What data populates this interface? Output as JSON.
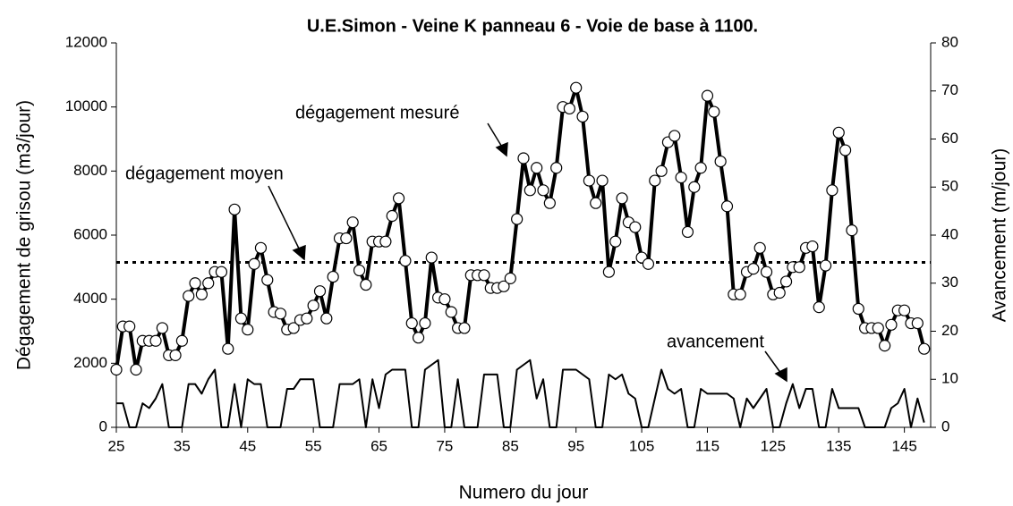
{
  "chart_data": {
    "type": "line",
    "title": "U.E.Simon - Veine K panneau 6 - Voie de base à 1100.",
    "x_label": "Numero du jour",
    "y_label": "Dégagement de grisou (m3/jour)",
    "y2_label": "Avancement (m/jour)",
    "annotations": [
      "dégagement mesuré",
      "dégagement moyen",
      "avancement"
    ],
    "x": [
      25,
      26,
      27,
      28,
      29,
      30,
      31,
      32,
      33,
      34,
      35,
      36,
      37,
      38,
      39,
      40,
      41,
      42,
      43,
      44,
      45,
      46,
      47,
      48,
      49,
      50,
      51,
      52,
      53,
      54,
      55,
      56,
      57,
      58,
      59,
      60,
      61,
      62,
      63,
      64,
      65,
      66,
      67,
      68,
      69,
      70,
      71,
      72,
      73,
      74,
      75,
      76,
      77,
      78,
      79,
      80,
      81,
      82,
      83,
      84,
      85,
      86,
      87,
      88,
      89,
      90,
      91,
      92,
      93,
      94,
      95,
      96,
      97,
      98,
      99,
      100,
      101,
      102,
      103,
      104,
      105,
      106,
      107,
      108,
      109,
      110,
      111,
      112,
      113,
      114,
      115,
      116,
      117,
      118,
      119,
      120,
      121,
      122,
      123,
      124,
      125,
      126,
      127,
      128,
      129,
      130,
      131,
      132,
      133,
      134,
      135,
      136,
      137,
      138,
      139,
      140,
      141,
      142,
      143,
      144,
      145,
      146,
      147,
      148
    ],
    "series": [
      {
        "name": "dégagement mesuré",
        "color": "#000000",
        "marker": "circle",
        "axis": "y",
        "values": [
          1800,
          3150,
          3150,
          1800,
          2700,
          2700,
          2700,
          3100,
          2250,
          2250,
          2700,
          4100,
          4500,
          4150,
          4500,
          4850,
          4850,
          2450,
          6800,
          3400,
          3050,
          5100,
          5600,
          4600,
          3600,
          3550,
          3050,
          3100,
          3350,
          3400,
          3800,
          4250,
          3400,
          4700,
          5900,
          5900,
          6400,
          4900,
          4450,
          5800,
          5800,
          5800,
          6600,
          7150,
          5200,
          3250,
          2800,
          3250,
          5300,
          4050,
          4000,
          3600,
          3100,
          3100,
          4750,
          4750,
          4750,
          4350,
          4350,
          4400,
          4650,
          6500,
          8400,
          7400,
          8100,
          7400,
          7000,
          8100,
          10000,
          9950,
          10600,
          9700,
          7700,
          7000,
          7700,
          4850,
          5800,
          7150,
          6400,
          6250,
          5300,
          5100,
          7700,
          8000,
          8900,
          9100,
          7800,
          6100,
          7500,
          8100,
          10350,
          9850,
          8300,
          6900,
          4150,
          4150,
          4850,
          4950,
          5600,
          4850,
          4150,
          4200,
          4550,
          5000,
          5000,
          5600,
          5650,
          3750,
          5050,
          7400,
          9200,
          8650,
          6150,
          3700,
          3100,
          3100,
          3100,
          2550,
          3200,
          3650,
          3650,
          3250,
          3250,
          2450
        ]
      },
      {
        "name": "avancement",
        "color": "#000000",
        "axis": "y2",
        "values": [
          5,
          5,
          0,
          0,
          5,
          4,
          6,
          9,
          0,
          0,
          0,
          9,
          9,
          7,
          10,
          12,
          0,
          0,
          9,
          0,
          10,
          9,
          9,
          0,
          0,
          0,
          8,
          8,
          10,
          10,
          10,
          0,
          0,
          0,
          9,
          9,
          9,
          10,
          0,
          10,
          4,
          11,
          12,
          12,
          12,
          0,
          0,
          12,
          13,
          14,
          0,
          0,
          10,
          0,
          0,
          0,
          11,
          11,
          11,
          0,
          0,
          12,
          13,
          14,
          6,
          10,
          0,
          0,
          12,
          12,
          12,
          11,
          10,
          0,
          0,
          11,
          10,
          11,
          7,
          6,
          0,
          0,
          6,
          12,
          8,
          7,
          8,
          0,
          0,
          8,
          7,
          7,
          7,
          7,
          6,
          0,
          6,
          4,
          6,
          8,
          0,
          0,
          5,
          9,
          4,
          8,
          8,
          0,
          0,
          8,
          4,
          4,
          4,
          4,
          0,
          0,
          0,
          0,
          4,
          5,
          8,
          0,
          6,
          1
        ]
      }
    ],
    "mean_line": {
      "name": "dégagement moyen",
      "value": 5150,
      "style": "dotted"
    },
    "xlim": [
      25,
      149
    ],
    "xticks": [
      25,
      35,
      45,
      55,
      65,
      75,
      85,
      95,
      105,
      115,
      125,
      135,
      145
    ],
    "ylim": [
      0,
      12000
    ],
    "yticks": [
      0,
      2000,
      4000,
      6000,
      8000,
      10000,
      12000
    ],
    "y2lim": [
      0,
      80
    ],
    "y2ticks": [
      0,
      10,
      20,
      30,
      40,
      50,
      60,
      70,
      80
    ],
    "grid": false
  }
}
